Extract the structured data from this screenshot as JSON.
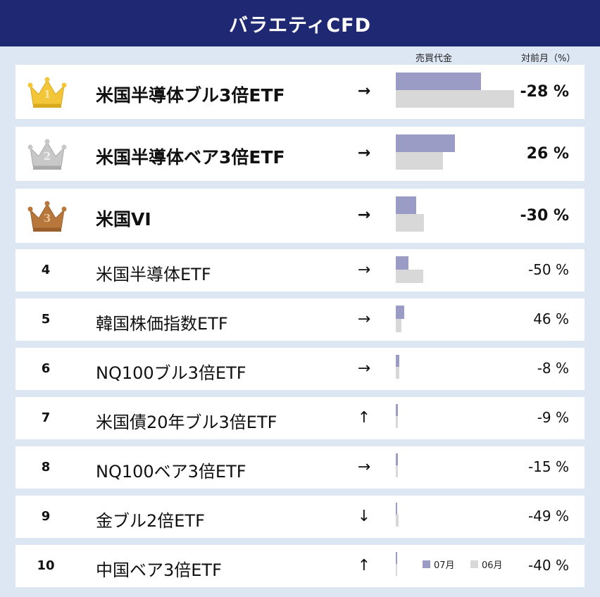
{
  "header": {
    "title": "バラエティCFD"
  },
  "columns": {
    "sales": "売買代金",
    "change": "対前月（%）"
  },
  "legend": {
    "current": "07月",
    "previous": "06月",
    "current_color": "#9b9cc6",
    "previous_color": "#d8d8d8"
  },
  "rankings": [
    {
      "rank": "1",
      "name": "米国半導体ブル3倍ETF",
      "arrow": "→",
      "change": "-28 %",
      "sales_07": 0.72,
      "sales_06": 1.0,
      "crown": "gold"
    },
    {
      "rank": "2",
      "name": "米国半導体ベア3倍ETF",
      "arrow": "→",
      "change": "26 %",
      "sales_07": 0.5,
      "sales_06": 0.4,
      "crown": "silver"
    },
    {
      "rank": "3",
      "name": "米国VI",
      "arrow": "→",
      "change": "-30 %",
      "sales_07": 0.17,
      "sales_06": 0.24,
      "crown": "bronze"
    },
    {
      "rank": "4",
      "name": "米国半導体ETF",
      "arrow": "→",
      "change": "-50 %",
      "sales_07": 0.11,
      "sales_06": 0.23
    },
    {
      "rank": "5",
      "name": "韓国株価指数ETF",
      "arrow": "→",
      "change": "46 %",
      "sales_07": 0.07,
      "sales_06": 0.05
    },
    {
      "rank": "6",
      "name": "NQ100ブル3倍ETF",
      "arrow": "→",
      "change": "-8 %",
      "sales_07": 0.03,
      "sales_06": 0.03
    },
    {
      "rank": "7",
      "name": "米国債20年ブル3倍ETF",
      "arrow": "↑",
      "change": "-9 %",
      "sales_07": 0.02,
      "sales_06": 0.02
    },
    {
      "rank": "8",
      "name": "NQ100ベア3倍ETF",
      "arrow": "→",
      "change": "-15 %",
      "sales_07": 0.015,
      "sales_06": 0.018
    },
    {
      "rank": "9",
      "name": "金ブル2倍ETF",
      "arrow": "↓",
      "change": "-49 %",
      "sales_07": 0.012,
      "sales_06": 0.022
    },
    {
      "rank": "10",
      "name": "中国ベア3倍ETF",
      "arrow": "↑",
      "change": "-40 %",
      "sales_07": 0.008,
      "sales_06": 0.012
    }
  ]
}
